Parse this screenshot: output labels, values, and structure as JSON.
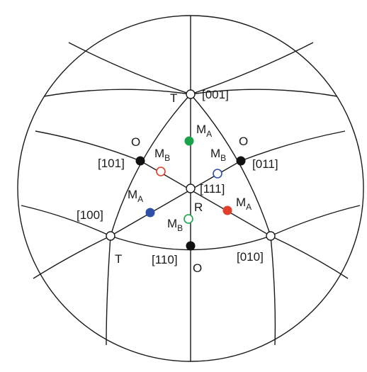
{
  "figure": {
    "labels": {
      "pole_001": "[001]",
      "pole_101": "[101]",
      "pole_011": "[011]",
      "pole_111": "[111]",
      "pole_100": "[100]",
      "pole_010": "[010]",
      "pole_110": "[110]",
      "t_top": "T",
      "t_left": "T",
      "o_left": "O",
      "o_right": "O",
      "o_bottom": "O",
      "r_center": "R",
      "ma_top": "M",
      "ma_top_sub": "A",
      "ma_left": "M",
      "ma_left_sub": "A",
      "ma_right": "M",
      "ma_right_sub": "A",
      "mb_left": "M",
      "mb_left_sub": "B",
      "mb_right": "M",
      "mb_right_sub": "B",
      "mb_bottom": "M",
      "mb_bottom_sub": "B"
    },
    "colors": {
      "line": "#1a1a1a",
      "green": "#1aa34a",
      "blue": "#2e4fa6",
      "red": "#e0402a",
      "black": "#111111",
      "open": "#ffffff"
    }
  }
}
